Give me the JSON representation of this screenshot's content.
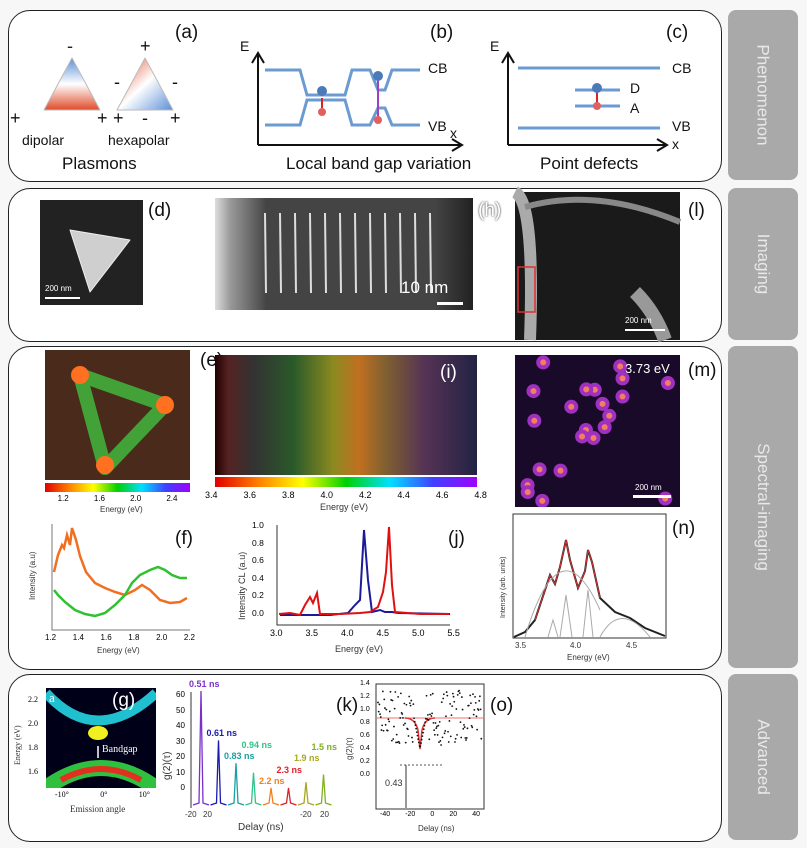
{
  "side_tabs": [
    "Phenomenon",
    "Imaging",
    "Spectral-imaging",
    "Advanced"
  ],
  "panel_labels": {
    "a": "(a)",
    "b": "(b)",
    "c": "(c)",
    "d": "(d)",
    "h": "(h)",
    "l": "(l)",
    "e": "(e)",
    "i": "(i)",
    "m": "(m)",
    "f": "(f)",
    "j": "(j)",
    "n": "(n)",
    "g": "(g)",
    "k": "(k)",
    "o": "(o)"
  },
  "a": {
    "dipolar": "dipolar",
    "hexapolar": "hexapolar",
    "title": "Plasmons",
    "plus": "+",
    "minus": "-"
  },
  "b": {
    "E": "E",
    "CB": "CB",
    "VB": "VB",
    "x": "x",
    "title": "Local band gap variation"
  },
  "c": {
    "E": "E",
    "CB": "CB",
    "VB": "VB",
    "x": "x",
    "D": "D",
    "A": "A",
    "title": "Point defects"
  },
  "d": {
    "scale": "200 nm"
  },
  "h": {
    "scale": "10 nm"
  },
  "l": {
    "scale": "200 nm"
  },
  "e": {
    "xlabel": "Energy (eV)",
    "ticks": [
      "1.2",
      "1.6",
      "2.0",
      "2.4"
    ]
  },
  "i": {
    "xlabel": "Energy (eV)",
    "ticks": [
      "3.4",
      "3.6",
      "3.8",
      "4.0",
      "4.2",
      "4.4",
      "4.6",
      "4.8"
    ]
  },
  "m": {
    "energy": "3.73 eV",
    "scale": "200 nm"
  },
  "f": {
    "ylabel": "Intensity (a.u)",
    "xlabel": "Energy (eV)",
    "ticks": [
      "1.2",
      "1.4",
      "1.6",
      "1.8",
      "2.0",
      "2.2"
    ]
  },
  "j": {
    "ylabel": "Intensity CL (a.u)",
    "xlabel": "Energy (eV)",
    "xticks": [
      "3.0",
      "3.5",
      "4.0",
      "4.5",
      "5.0",
      "5.5"
    ],
    "yticks": [
      "1.0",
      "0.8",
      "0.6",
      "0.4",
      "0.2",
      "0.0"
    ]
  },
  "n": {
    "ylabel": "Intensity (arb. units)",
    "xlabel": "Energy (eV)",
    "ticks": [
      "3.5",
      "4.0",
      "4.5"
    ]
  },
  "g": {
    "corner": "a",
    "ylabel": "Energy (eV)",
    "xlabel": "Emission angle",
    "yticks": [
      "2.2",
      "2.0",
      "1.8",
      "1.6"
    ],
    "xticks": [
      "-10°",
      "0°",
      "10°"
    ],
    "bandgap": "Bandgap"
  },
  "k": {
    "ylabel": "g(2)(τ)",
    "xlabel": "Delay (ns)",
    "yticks": [
      "60",
      "50",
      "40",
      "30",
      "20",
      "10",
      "0"
    ],
    "xticks": [
      "-20",
      "20",
      "-20",
      "20"
    ],
    "peaks": [
      {
        "label": "0.51 ns",
        "color": "#7b2fc9",
        "h": 60
      },
      {
        "label": "0.61 ns",
        "color": "#1a1ab0",
        "h": 34
      },
      {
        "label": "0.83 ns",
        "color": "#1aa0a0",
        "h": 22
      },
      {
        "label": "0.94 ns",
        "color": "#2ec48a",
        "h": 17
      },
      {
        "label": "2.2 ns",
        "color": "#f08020",
        "h": 9
      },
      {
        "label": "2.3 ns",
        "color": "#e0202a",
        "h": 9
      },
      {
        "label": "1.9 ns",
        "color": "#a8a820",
        "h": 12
      },
      {
        "label": "1.5 ns",
        "color": "#80b020",
        "h": 16
      }
    ]
  },
  "o": {
    "ylabel": "g(2)(τ)",
    "xlabel": "Delay (ns)",
    "yticks": [
      "1.4",
      "1.2",
      "1.0",
      "0.8",
      "0.6",
      "0.4",
      "0.2",
      "0.0"
    ],
    "xticks": [
      "-40",
      "-20",
      "0",
      "20",
      "40"
    ],
    "min_label": "0.43"
  }
}
